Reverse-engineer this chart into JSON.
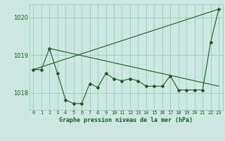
{
  "xlabel": "Graphe pression niveau de la mer (hPa)",
  "background_color": "#cce8e0",
  "grid_color": "#99ccbb",
  "line_color": "#1a5c2a",
  "ylim": [
    1017.55,
    1020.35
  ],
  "xlim": [
    -0.5,
    23.5
  ],
  "yticks": [
    1018,
    1019,
    1020
  ],
  "xticks": [
    0,
    1,
    2,
    3,
    4,
    5,
    6,
    7,
    8,
    9,
    10,
    11,
    12,
    13,
    14,
    15,
    16,
    17,
    18,
    19,
    20,
    21,
    22,
    23
  ],
  "pressure_data": [
    1018.62,
    1018.62,
    1019.18,
    1018.52,
    1017.82,
    1017.72,
    1017.72,
    1018.25,
    1018.15,
    1018.52,
    1018.38,
    1018.32,
    1018.38,
    1018.32,
    1018.18,
    1018.18,
    1018.18,
    1018.45,
    1018.08,
    1018.08,
    1018.08,
    1018.08,
    1019.35,
    1020.22
  ],
  "trend1_x": [
    0,
    23
  ],
  "trend1_y": [
    1018.62,
    1020.22
  ],
  "trend2_x": [
    2,
    23
  ],
  "trend2_y": [
    1019.18,
    1018.18
  ]
}
